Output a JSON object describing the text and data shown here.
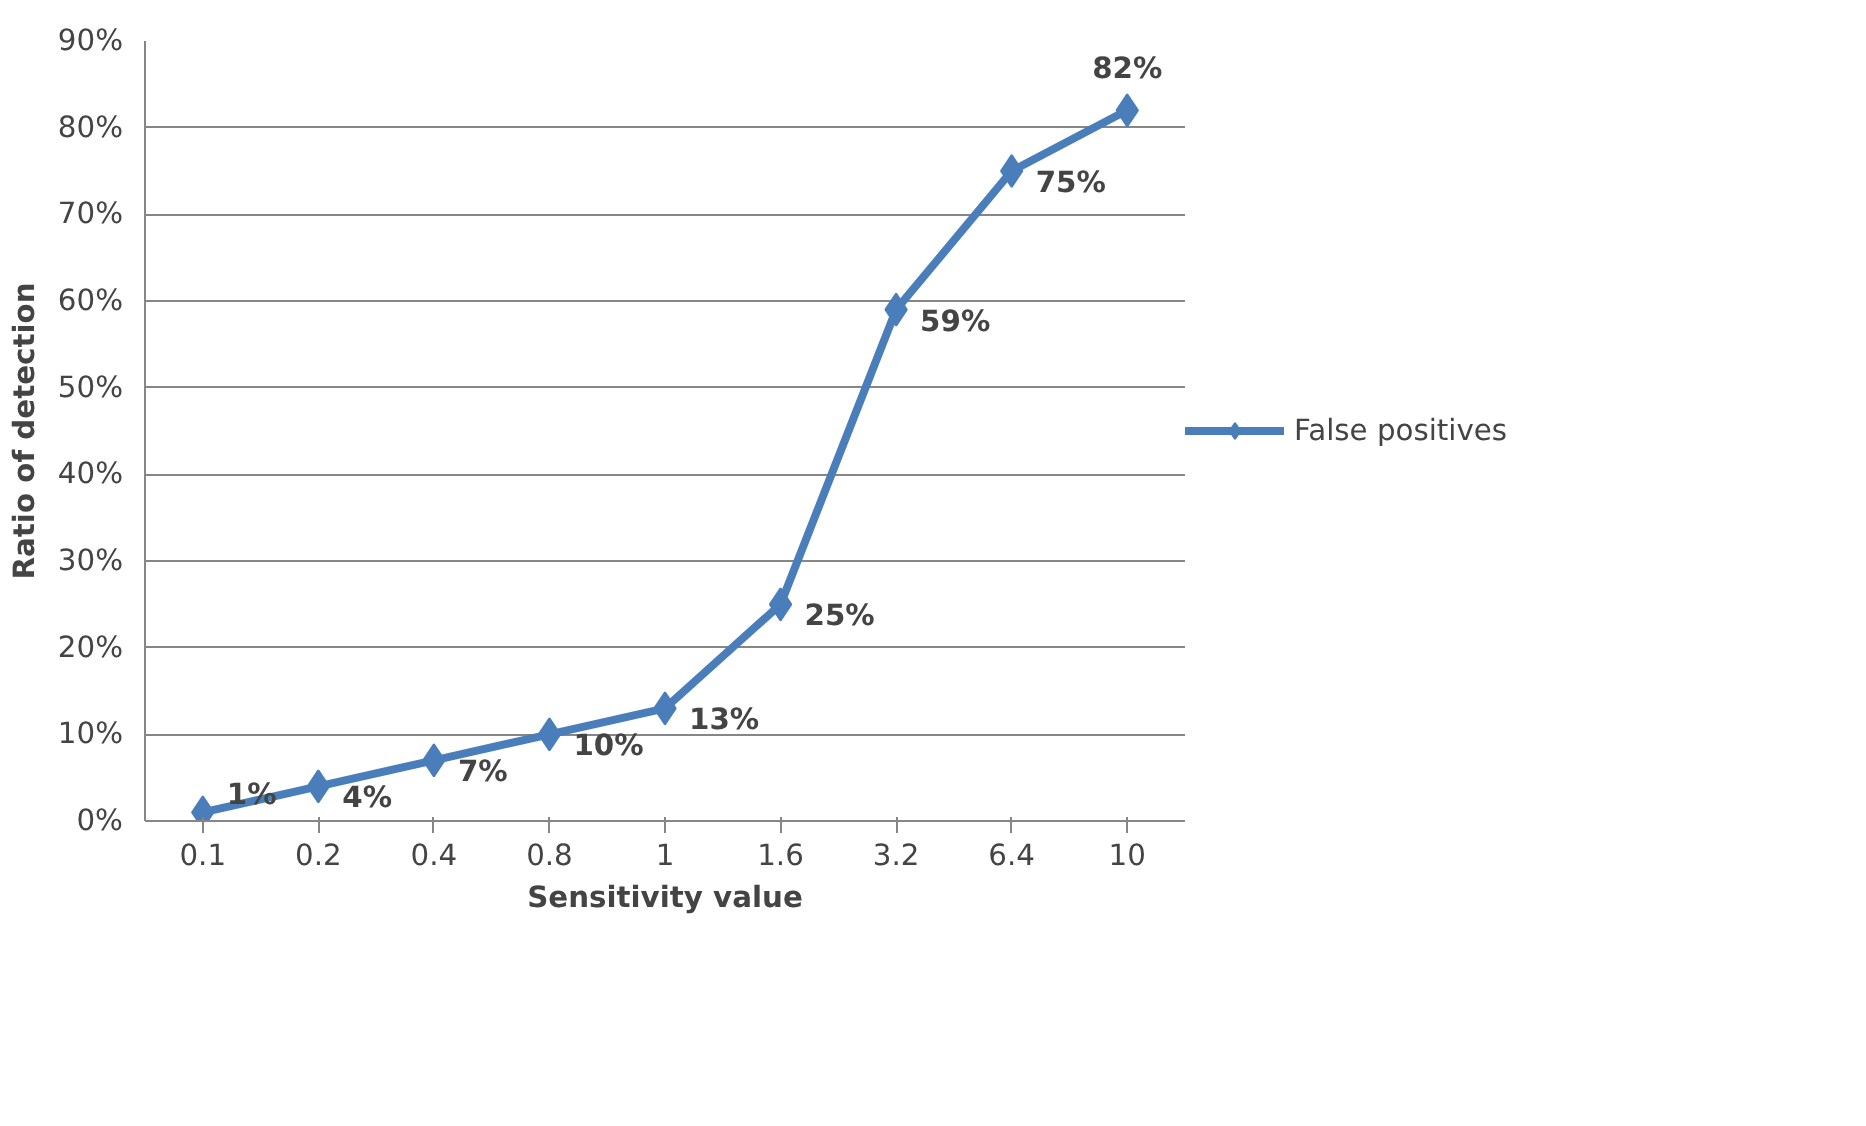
{
  "chart_data": {
    "type": "line",
    "xlabel": "Sensitivity value",
    "ylabel": "Ratio of detection",
    "categories": [
      "0.1",
      "0.2",
      "0.4",
      "0.8",
      "1",
      "1.6",
      "3.2",
      "6.4",
      "10"
    ],
    "series": [
      {
        "name": "False positives",
        "color": "#4a7ebb",
        "values": [
          1,
          4,
          7,
          10,
          13,
          25,
          59,
          75,
          82
        ],
        "value_labels": [
          "1%",
          "4%",
          "7%",
          "10%",
          "13%",
          "25%",
          "59%",
          "75%",
          "82%"
        ]
      }
    ],
    "ylim": [
      0,
      90
    ],
    "yticks": [
      {
        "value": 0,
        "label": "0%"
      },
      {
        "value": 10,
        "label": "10%"
      },
      {
        "value": 20,
        "label": "20%"
      },
      {
        "value": 30,
        "label": "30%"
      },
      {
        "value": 40,
        "label": "40%"
      },
      {
        "value": 50,
        "label": "50%"
      },
      {
        "value": 60,
        "label": "60%"
      },
      {
        "value": 70,
        "label": "70%"
      },
      {
        "value": 80,
        "label": "80%"
      },
      {
        "value": 90,
        "label": "90%"
      }
    ],
    "grid": "y",
    "legend": "right",
    "marker": "diamond",
    "line_style": "solid"
  }
}
